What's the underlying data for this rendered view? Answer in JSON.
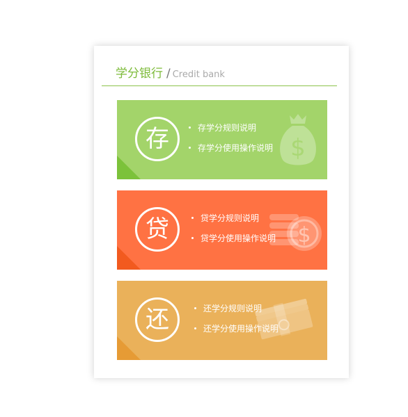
{
  "header": {
    "title_cn": "学分银行",
    "separator": "/",
    "title_en": "Credit bank"
  },
  "cards": [
    {
      "badge": "存",
      "links": [
        "存学分规则说明",
        "存学分使用操作说明"
      ],
      "bg_color": "#a3d46a",
      "corner_color": "#7cc23a",
      "icon": "money-bag-icon"
    },
    {
      "badge": "贷",
      "links": [
        "贷学分规则说明",
        "贷学分使用操作说明"
      ],
      "bg_color": "#ff7243",
      "corner_color": "#f25a1f",
      "icon": "coin-stack-icon"
    },
    {
      "badge": "还",
      "links": [
        "还学分规则说明",
        "还学分使用操作说明"
      ],
      "bg_color": "#eab15a",
      "corner_color": "#e69b35",
      "icon": "cash-bundle-icon"
    }
  ]
}
